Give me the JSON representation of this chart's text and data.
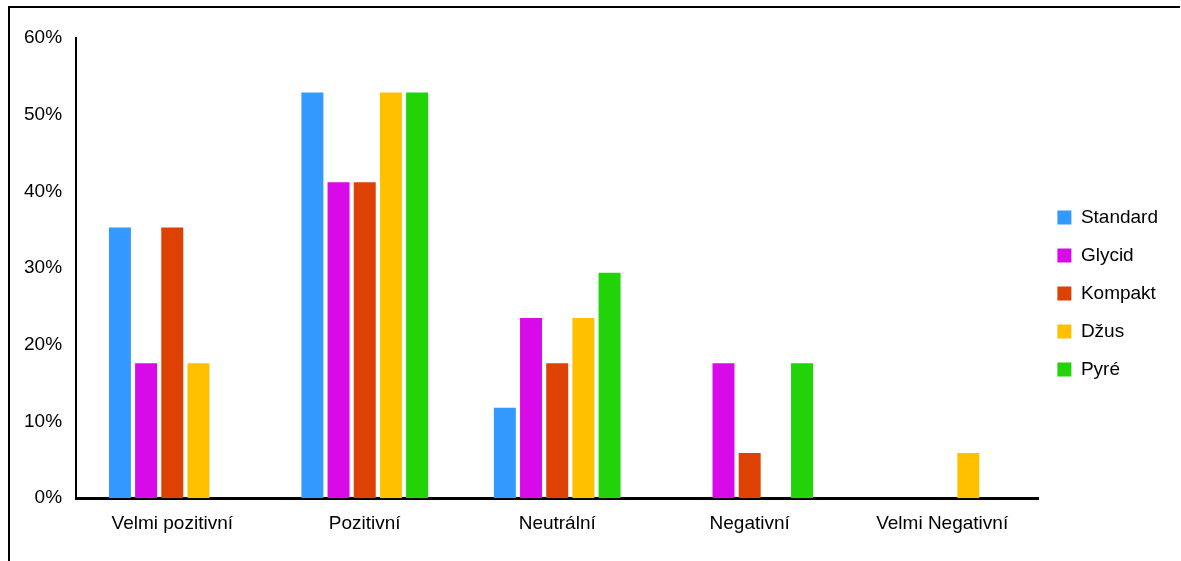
{
  "chart_data": {
    "type": "bar",
    "categories": [
      "Velmi pozitivní",
      "Pozitivní",
      "Neutrální",
      "Negativní",
      "Velmi Negativní"
    ],
    "series": [
      {
        "name": "Standard",
        "color": "#3399ff",
        "values": [
          35.3,
          52.9,
          11.8,
          0,
          0
        ]
      },
      {
        "name": "Glycid",
        "color": "#d80ae8",
        "values": [
          17.6,
          41.2,
          23.5,
          17.6,
          0
        ]
      },
      {
        "name": "Kompakt",
        "color": "#dd4204",
        "values": [
          35.3,
          41.2,
          17.6,
          5.9,
          0
        ]
      },
      {
        "name": "Džus",
        "color": "#ffc000",
        "values": [
          17.6,
          52.9,
          23.5,
          0,
          5.9
        ]
      },
      {
        "name": "Pyré",
        "color": "#22d30a",
        "values": [
          0,
          52.9,
          29.4,
          17.6,
          0
        ]
      }
    ],
    "ylim": [
      0,
      60
    ],
    "yticks": [
      {
        "value": 0,
        "label": "0%"
      },
      {
        "value": 10,
        "label": "10%"
      },
      {
        "value": 20,
        "label": "20%"
      },
      {
        "value": 30,
        "label": "30%"
      },
      {
        "value": 40,
        "label": "40%"
      },
      {
        "value": 50,
        "label": "50%"
      },
      {
        "value": 60,
        "label": "60%"
      }
    ],
    "grid": false,
    "legend": "right"
  }
}
